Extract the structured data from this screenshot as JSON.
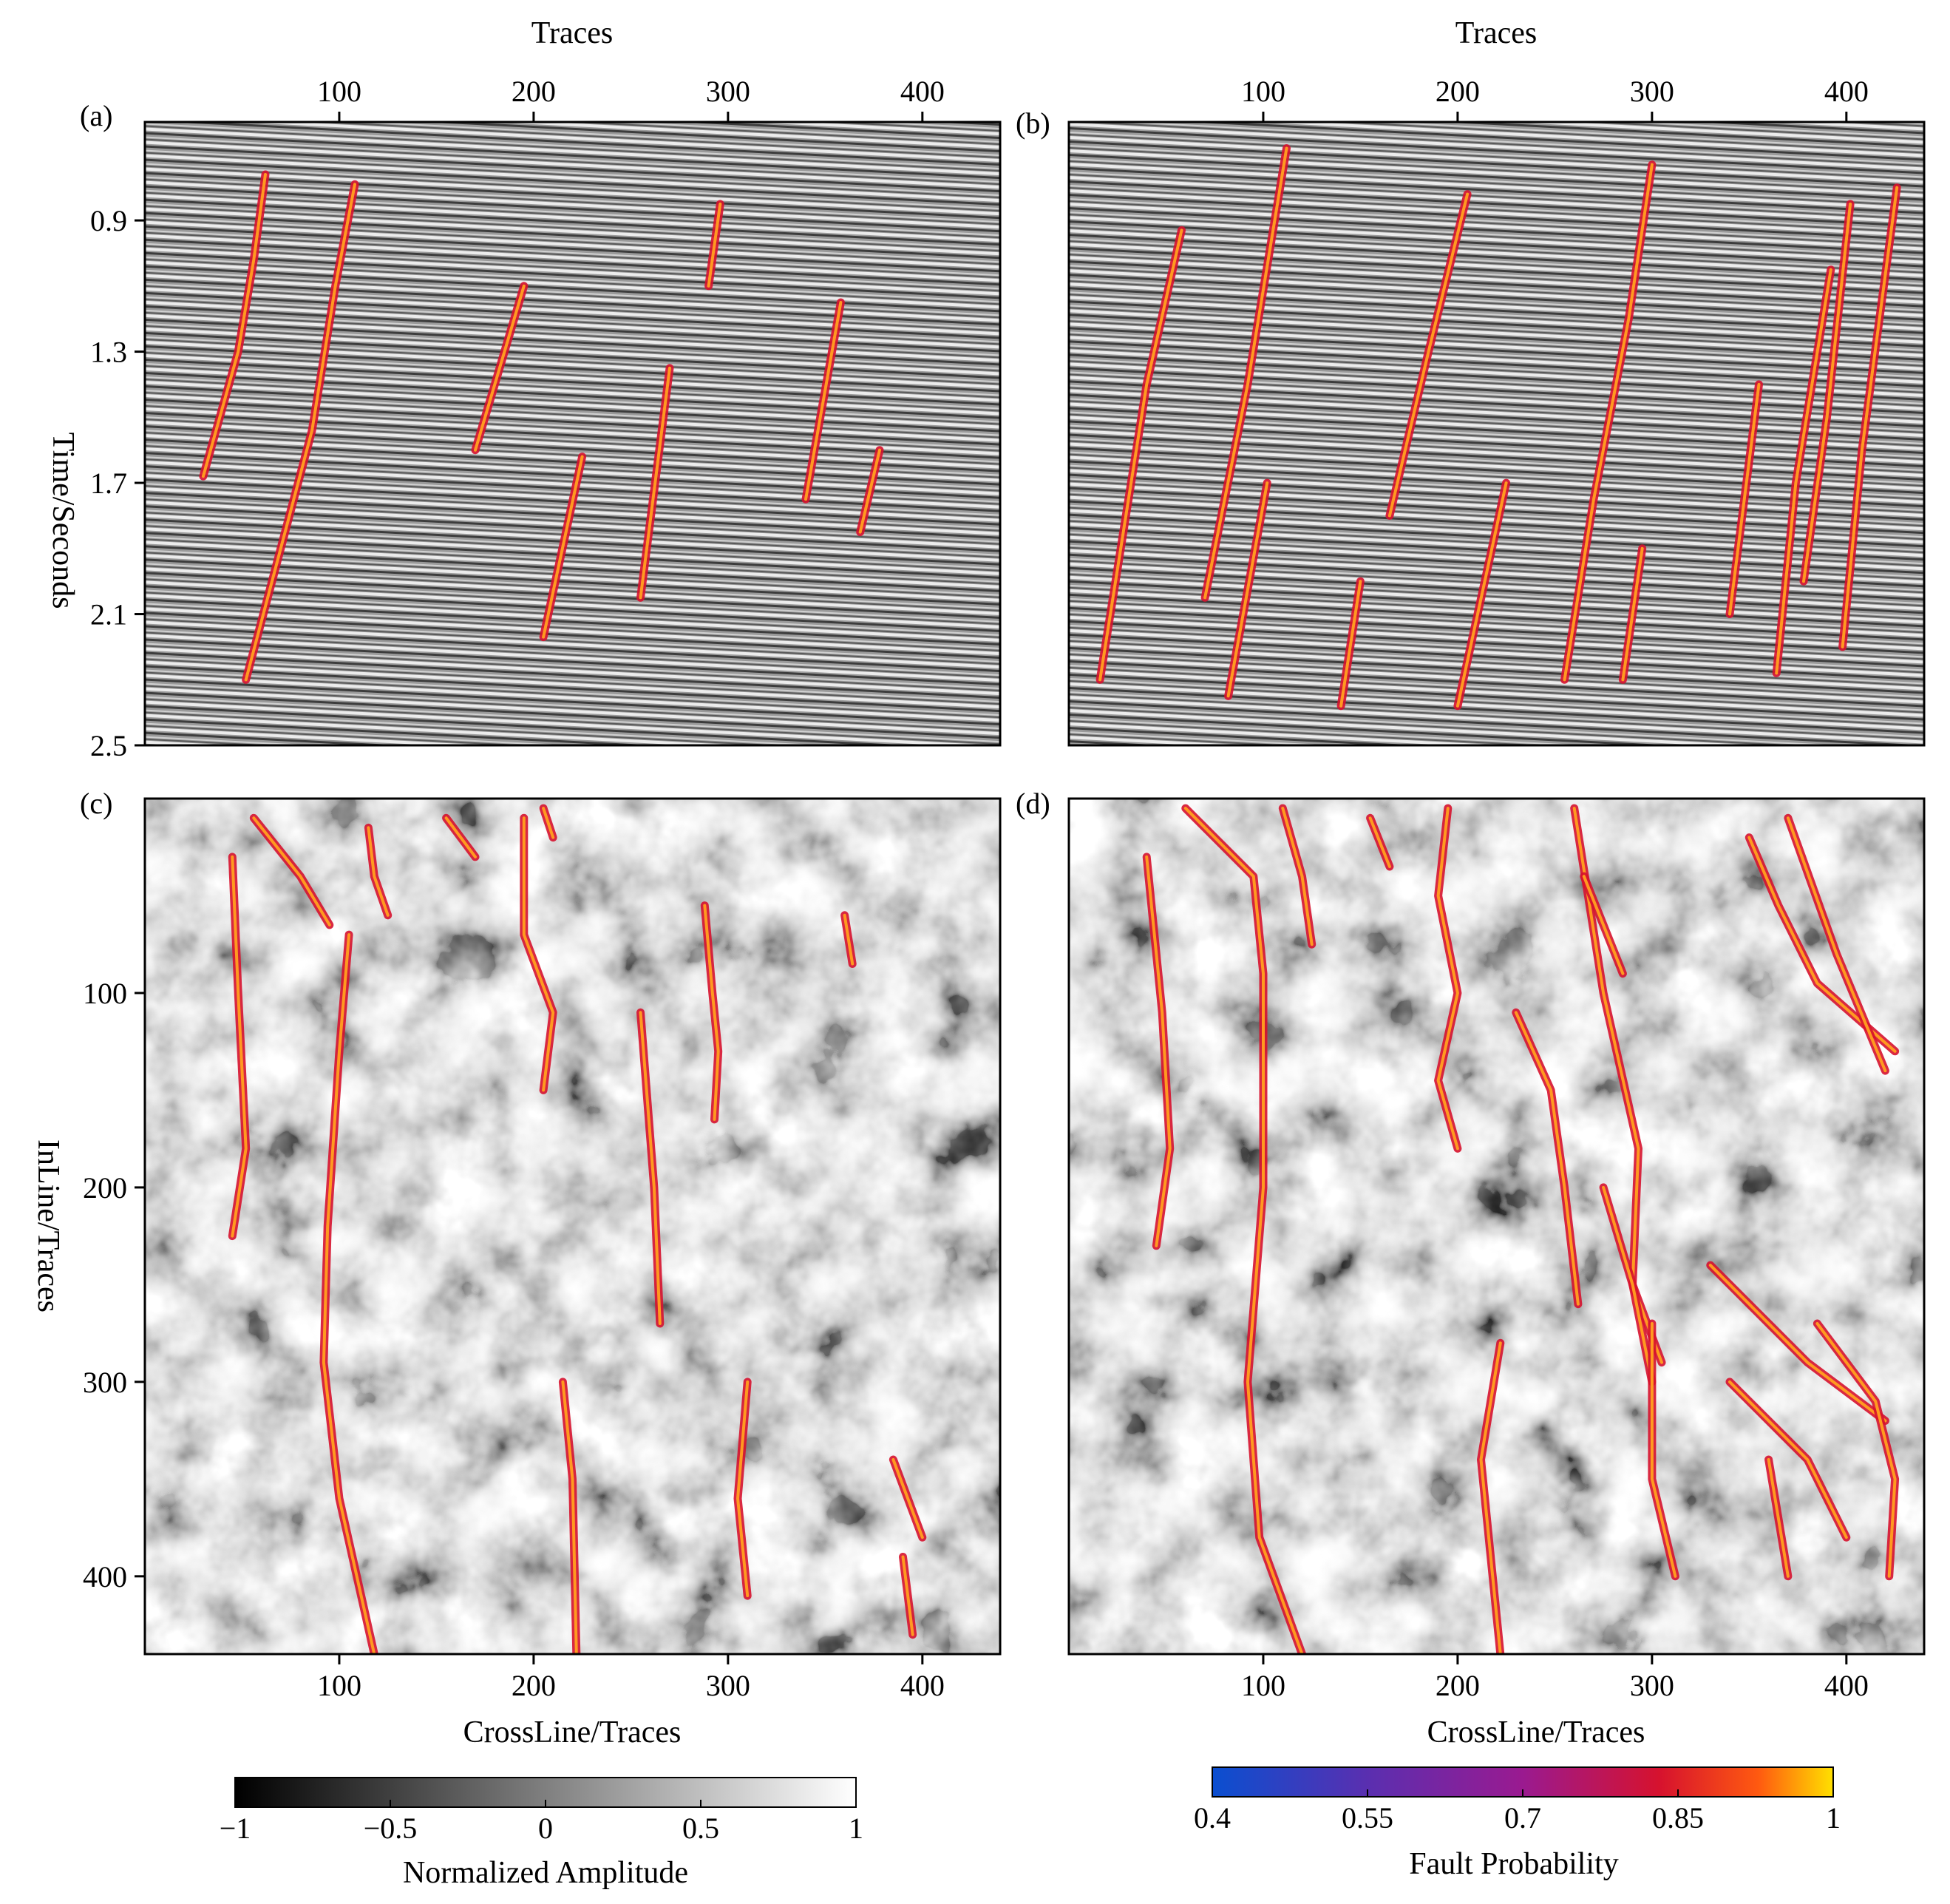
{
  "chart_data": [
    {
      "id": "a",
      "panel_label": "(a)",
      "type": "heatmap",
      "xlabel": "Traces",
      "ylabel": "Time/Seconds",
      "x_axis_position": "top",
      "xlim": [
        0,
        440
      ],
      "ylim": [
        0.6,
        2.5
      ],
      "x_ticks": [
        100,
        200,
        300,
        400
      ],
      "y_ticks": [
        0.9,
        1.3,
        1.7,
        2.1,
        2.5
      ],
      "background": "seismic-inline-section",
      "fault_segments": [
        [
          [
            62,
            0.76
          ],
          [
            56,
            1.02
          ],
          [
            48,
            1.3
          ],
          [
            30,
            1.68
          ]
        ],
        [
          [
            108,
            0.79
          ],
          [
            98,
            1.1
          ],
          [
            86,
            1.54
          ],
          [
            52,
            2.3
          ]
        ],
        [
          [
            195,
            1.1
          ],
          [
            170,
            1.6
          ]
        ],
        [
          [
            225,
            1.62
          ],
          [
            205,
            2.17
          ]
        ],
        [
          [
            296,
            0.85
          ],
          [
            290,
            1.1
          ]
        ],
        [
          [
            270,
            1.35
          ],
          [
            255,
            2.05
          ]
        ],
        [
          [
            358,
            1.15
          ],
          [
            340,
            1.75
          ]
        ],
        [
          [
            378,
            1.6
          ],
          [
            368,
            1.85
          ]
        ]
      ]
    },
    {
      "id": "b",
      "panel_label": "(b)",
      "type": "heatmap",
      "xlabel": "Traces",
      "x_axis_position": "top",
      "xlim": [
        0,
        440
      ],
      "ylim": [
        0.6,
        2.5
      ],
      "x_ticks": [
        100,
        200,
        300,
        400
      ],
      "background": "seismic-inline-section",
      "fault_segments": [
        [
          [
            58,
            0.93
          ],
          [
            40,
            1.4
          ],
          [
            16,
            2.3
          ]
        ],
        [
          [
            112,
            0.68
          ],
          [
            92,
            1.4
          ],
          [
            70,
            2.05
          ]
        ],
        [
          [
            102,
            1.7
          ],
          [
            82,
            2.35
          ]
        ],
        [
          [
            205,
            0.82
          ],
          [
            185,
            1.3
          ],
          [
            165,
            1.8
          ]
        ],
        [
          [
            150,
            2.0
          ],
          [
            140,
            2.38
          ]
        ],
        [
          [
            225,
            1.7
          ],
          [
            200,
            2.38
          ]
        ],
        [
          [
            300,
            0.73
          ],
          [
            288,
            1.2
          ],
          [
            270,
            1.75
          ],
          [
            255,
            2.3
          ]
        ],
        [
          [
            295,
            1.9
          ],
          [
            285,
            2.3
          ]
        ],
        [
          [
            355,
            1.4
          ],
          [
            340,
            2.1
          ]
        ],
        [
          [
            392,
            1.05
          ],
          [
            374,
            1.7
          ],
          [
            364,
            2.28
          ]
        ],
        [
          [
            402,
            0.85
          ],
          [
            390,
            1.5
          ],
          [
            378,
            2.0
          ]
        ],
        [
          [
            426,
            0.8
          ],
          [
            408,
            1.6
          ],
          [
            398,
            2.2
          ]
        ]
      ]
    },
    {
      "id": "c",
      "panel_label": "(c)",
      "type": "heatmap",
      "xlabel": "CrossLine/Traces",
      "ylabel": "InLine/Traces",
      "x_axis_position": "bottom",
      "xlim": [
        0,
        440
      ],
      "ylim": [
        0,
        440
      ],
      "x_ticks": [
        100,
        200,
        300,
        400
      ],
      "y_ticks": [
        100,
        200,
        300,
        400
      ],
      "background": "amplitude-time-slice",
      "fault_segments": [
        [
          [
            45,
            30
          ],
          [
            48,
            100
          ],
          [
            52,
            180
          ],
          [
            45,
            225
          ]
        ],
        [
          [
            56,
            10
          ],
          [
            80,
            40
          ],
          [
            95,
            65
          ]
        ],
        [
          [
            105,
            70
          ],
          [
            100,
            130
          ],
          [
            94,
            220
          ],
          [
            92,
            290
          ],
          [
            100,
            360
          ],
          [
            118,
            440
          ]
        ],
        [
          [
            115,
            15
          ],
          [
            118,
            40
          ],
          [
            125,
            60
          ]
        ],
        [
          [
            155,
            10
          ],
          [
            170,
            30
          ]
        ],
        [
          [
            195,
            10
          ],
          [
            195,
            70
          ],
          [
            210,
            110
          ],
          [
            205,
            150
          ]
        ],
        [
          [
            205,
            5
          ],
          [
            210,
            20
          ]
        ],
        [
          [
            288,
            55
          ],
          [
            292,
            100
          ],
          [
            295,
            130
          ],
          [
            293,
            165
          ]
        ],
        [
          [
            255,
            110
          ],
          [
            262,
            200
          ],
          [
            265,
            270
          ]
        ],
        [
          [
            215,
            300
          ],
          [
            220,
            350
          ],
          [
            222,
            440
          ]
        ],
        [
          [
            310,
            300
          ],
          [
            305,
            360
          ],
          [
            310,
            410
          ]
        ],
        [
          [
            385,
            340
          ],
          [
            400,
            380
          ]
        ],
        [
          [
            390,
            390
          ],
          [
            395,
            430
          ]
        ],
        [
          [
            360,
            60
          ],
          [
            364,
            85
          ]
        ]
      ]
    },
    {
      "id": "d",
      "panel_label": "(d)",
      "type": "heatmap",
      "xlabel": "CrossLine/Traces",
      "x_axis_position": "bottom",
      "xlim": [
        0,
        440
      ],
      "ylim": [
        0,
        440
      ],
      "x_ticks": [
        100,
        200,
        300,
        400
      ],
      "background": "amplitude-time-slice",
      "fault_segments": [
        [
          [
            40,
            30
          ],
          [
            48,
            110
          ],
          [
            52,
            180
          ],
          [
            45,
            230
          ]
        ],
        [
          [
            60,
            5
          ],
          [
            95,
            40
          ],
          [
            100,
            90
          ],
          [
            100,
            200
          ],
          [
            92,
            300
          ],
          [
            98,
            380
          ],
          [
            120,
            440
          ]
        ],
        [
          [
            110,
            5
          ],
          [
            120,
            40
          ],
          [
            125,
            75
          ]
        ],
        [
          [
            155,
            10
          ],
          [
            165,
            35
          ]
        ],
        [
          [
            195,
            5
          ],
          [
            190,
            50
          ],
          [
            200,
            100
          ],
          [
            190,
            145
          ],
          [
            200,
            180
          ]
        ],
        [
          [
            260,
            5
          ],
          [
            275,
            100
          ],
          [
            293,
            180
          ],
          [
            290,
            250
          ],
          [
            305,
            290
          ]
        ],
        [
          [
            265,
            40
          ],
          [
            285,
            90
          ]
        ],
        [
          [
            230,
            110
          ],
          [
            248,
            150
          ],
          [
            255,
            200
          ],
          [
            262,
            260
          ]
        ],
        [
          [
            275,
            200
          ],
          [
            290,
            250
          ],
          [
            300,
            300
          ]
        ],
        [
          [
            222,
            280
          ],
          [
            212,
            340
          ],
          [
            222,
            440
          ]
        ],
        [
          [
            300,
            270
          ],
          [
            300,
            350
          ],
          [
            312,
            400
          ]
        ],
        [
          [
            350,
            20
          ],
          [
            365,
            55
          ],
          [
            385,
            95
          ],
          [
            425,
            130
          ]
        ],
        [
          [
            370,
            10
          ],
          [
            395,
            80
          ],
          [
            420,
            140
          ]
        ],
        [
          [
            330,
            240
          ],
          [
            380,
            290
          ],
          [
            420,
            320
          ]
        ],
        [
          [
            340,
            300
          ],
          [
            380,
            340
          ],
          [
            400,
            380
          ]
        ],
        [
          [
            385,
            270
          ],
          [
            415,
            310
          ],
          [
            425,
            350
          ],
          [
            422,
            400
          ]
        ],
        [
          [
            360,
            340
          ],
          [
            370,
            400
          ]
        ]
      ]
    }
  ],
  "colorbars": [
    {
      "id": "amplitude",
      "label": "Normalized Amplitude",
      "range": [
        -1,
        1
      ],
      "tick_labels": [
        "−1",
        "−0.5",
        "0",
        "0.5",
        "1"
      ],
      "tick_values": [
        -1,
        -0.5,
        0,
        0.5,
        1
      ],
      "colors": [
        "#000000",
        "#ffffff"
      ]
    },
    {
      "id": "fault",
      "label": "Fault Probability",
      "range": [
        0.4,
        1
      ],
      "tick_labels": [
        "0.4",
        "0.55",
        "0.7",
        "0.85",
        "1"
      ],
      "tick_values": [
        0.4,
        0.55,
        0.7,
        0.85,
        1
      ],
      "colors": [
        "#0a4fd0",
        "#5a2fb0",
        "#9a1a90",
        "#d6122e",
        "#ff5a10",
        "#ffe000"
      ]
    }
  ]
}
